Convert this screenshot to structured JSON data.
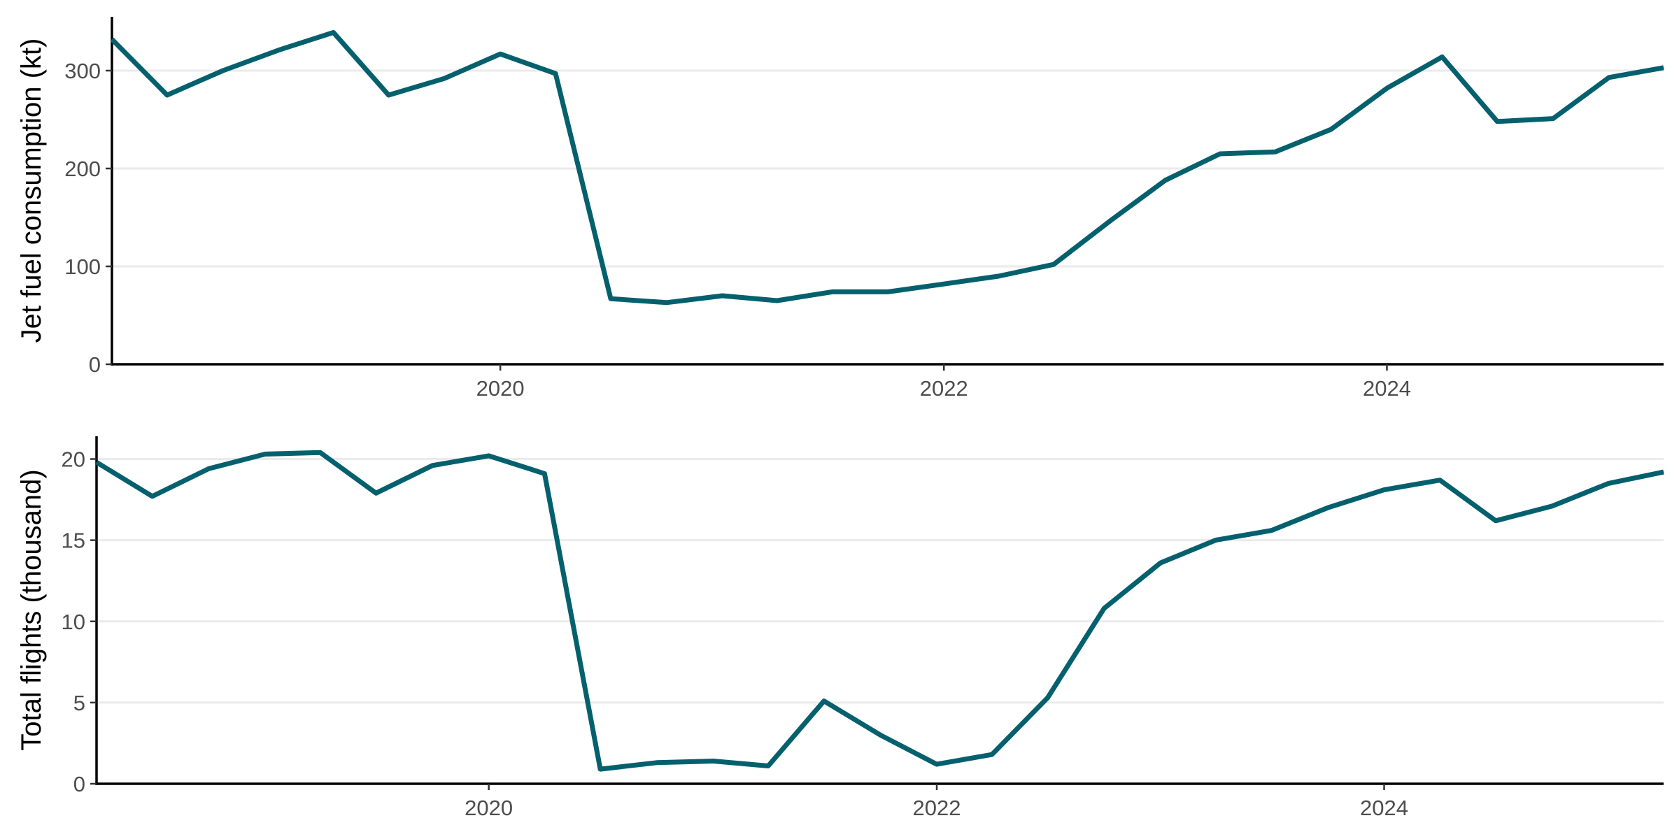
{
  "colors": {
    "series": "#05606e",
    "grid": "#ebebeb",
    "axis": "#000000",
    "tick_text": "#4d4d4d"
  },
  "chart_data": [
    {
      "type": "line",
      "title": "",
      "xlabel": "",
      "ylabel": "Jet fuel consumption (kt)",
      "xlim": [
        "2018-04-01",
        "2025-04-01"
      ],
      "ylim": [
        0,
        355
      ],
      "x_ticks": [
        "2020-01-01",
        "2022-01-01",
        "2024-01-01"
      ],
      "x_tick_labels": [
        "2020",
        "2022",
        "2024"
      ],
      "y_ticks": [
        0,
        100,
        200,
        300
      ],
      "y_tick_labels": [
        "0",
        "100",
        "200",
        "300"
      ],
      "grid": "horizontal",
      "legend": "none",
      "series": [
        {
          "x": [
            "2018-04-01",
            "2018-07-01",
            "2018-10-01",
            "2019-01-01",
            "2019-04-01",
            "2019-07-01",
            "2019-10-01",
            "2020-01-01",
            "2020-04-01",
            "2020-07-01",
            "2020-10-01",
            "2021-01-01",
            "2021-04-01",
            "2021-07-01",
            "2021-10-01",
            "2022-01-01",
            "2022-04-01",
            "2022-07-01",
            "2022-10-01",
            "2023-01-01",
            "2023-04-01",
            "2023-07-01",
            "2023-10-01",
            "2024-01-01",
            "2024-04-01",
            "2024-07-01",
            "2024-10-01",
            "2025-01-01",
            "2025-04-01"
          ],
          "values": [
            332,
            275,
            300,
            321,
            339,
            275,
            292,
            317,
            297,
            67,
            63,
            70,
            65,
            74,
            74,
            82,
            90,
            102,
            146,
            188,
            215,
            217,
            240,
            282,
            314,
            248,
            251,
            293,
            303
          ]
        }
      ]
    },
    {
      "type": "line",
      "title": "",
      "xlabel": "",
      "ylabel": "Total flights (thousand)",
      "xlim": [
        "2018-04-01",
        "2025-04-01"
      ],
      "ylim": [
        0,
        21.4
      ],
      "x_ticks": [
        "2020-01-01",
        "2022-01-01",
        "2024-01-01"
      ],
      "x_tick_labels": [
        "2020",
        "2022",
        "2024"
      ],
      "y_ticks": [
        0,
        5,
        10,
        15,
        20
      ],
      "y_tick_labels": [
        "0",
        "5",
        "10",
        "15",
        "20"
      ],
      "grid": "horizontal",
      "legend": "none",
      "series": [
        {
          "x": [
            "2018-04-01",
            "2018-07-01",
            "2018-10-01",
            "2019-01-01",
            "2019-04-01",
            "2019-07-01",
            "2019-10-01",
            "2020-01-01",
            "2020-04-01",
            "2020-07-01",
            "2020-10-01",
            "2021-01-01",
            "2021-04-01",
            "2021-07-01",
            "2021-10-01",
            "2022-01-01",
            "2022-04-01",
            "2022-07-01",
            "2022-10-01",
            "2023-01-01",
            "2023-04-01",
            "2023-07-01",
            "2023-10-01",
            "2024-01-01",
            "2024-04-01",
            "2024-07-01",
            "2024-10-01",
            "2025-01-01",
            "2025-04-01"
          ],
          "values": [
            19.8,
            17.7,
            19.4,
            20.3,
            20.4,
            17.9,
            19.6,
            20.2,
            19.1,
            0.9,
            1.3,
            1.4,
            1.1,
            5.1,
            3.0,
            1.2,
            1.8,
            5.3,
            10.8,
            13.6,
            15.0,
            15.6,
            17.0,
            18.1,
            18.7,
            16.2,
            17.1,
            18.5,
            19.2
          ]
        }
      ]
    }
  ]
}
